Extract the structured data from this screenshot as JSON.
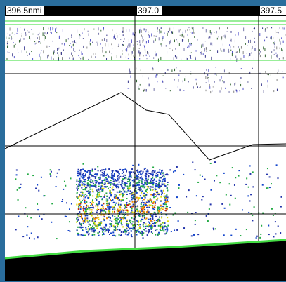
{
  "top_axis": {
    "labels": [
      "396.5nmi",
      "397.0",
      "397.5"
    ]
  }
}
